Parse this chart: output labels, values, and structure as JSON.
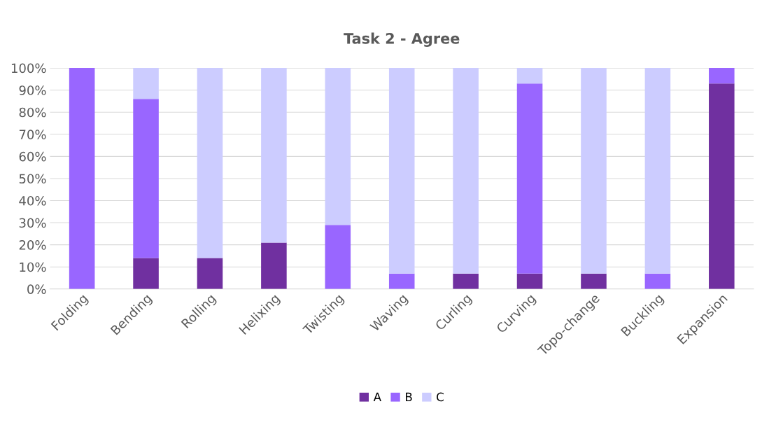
{
  "chart_data": {
    "type": "bar",
    "title": "Task 2 - Agree",
    "stacked": true,
    "categories": [
      "Folding",
      "Bending",
      "Rolling",
      "Helixing",
      "Twisting",
      "Waving",
      "Curling",
      "Curving",
      "Topo-change",
      "Buckling",
      "Expansion"
    ],
    "series": [
      {
        "name": "A",
        "color": "#7030a0",
        "values": [
          0,
          14,
          14,
          21,
          0,
          0,
          7,
          7,
          7,
          0,
          93
        ]
      },
      {
        "name": "B",
        "color": "#9966ff",
        "values": [
          100,
          72,
          0,
          0,
          29,
          7,
          0,
          86,
          0,
          7,
          7
        ]
      },
      {
        "name": "C",
        "color": "#ccccff",
        "values": [
          0,
          14,
          86,
          79,
          71,
          93,
          93,
          7,
          93,
          93,
          0
        ]
      }
    ],
    "ylim": [
      0,
      100
    ],
    "yticks": [
      {
        "value": 0,
        "label": "0%"
      },
      {
        "value": 10,
        "label": "10%"
      },
      {
        "value": 20,
        "label": "20%"
      },
      {
        "value": 30,
        "label": "30%"
      },
      {
        "value": 40,
        "label": "40%"
      },
      {
        "value": 50,
        "label": "50%"
      },
      {
        "value": 60,
        "label": "60%"
      },
      {
        "value": 70,
        "label": "70%"
      },
      {
        "value": 80,
        "label": "80%"
      },
      {
        "value": 90,
        "label": "90%"
      },
      {
        "value": 100,
        "label": "100%"
      }
    ],
    "grid": "y",
    "legend": "bottom"
  }
}
